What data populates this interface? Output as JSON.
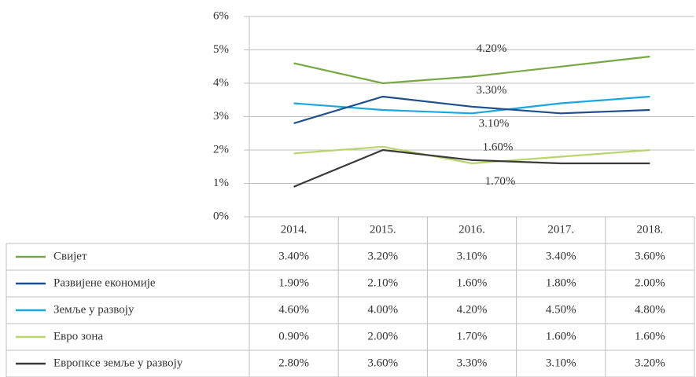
{
  "chart_data": {
    "type": "line",
    "categories": [
      "2014.",
      "2015.",
      "2016.",
      "2017.",
      "2018."
    ],
    "ylim": [
      0,
      6
    ],
    "yticks": [
      {
        "value": 0,
        "label": "0%"
      },
      {
        "value": 1,
        "label": "1%"
      },
      {
        "value": 2,
        "label": "2%"
      },
      {
        "value": 3,
        "label": "3%"
      },
      {
        "value": 4,
        "label": "4%"
      },
      {
        "value": 5,
        "label": "5%"
      },
      {
        "value": 6,
        "label": "6%"
      }
    ],
    "grid": true,
    "series": [
      {
        "name": "Свијет",
        "color": "#77a844",
        "line_color": "#1aa7e0",
        "values": [
          3.4,
          3.2,
          3.1,
          3.4,
          3.6
        ],
        "value_labels": [
          "3.40%",
          "3.20%",
          "3.10%",
          "3.40%",
          "3.60%"
        ]
      },
      {
        "name": "Развијене економије",
        "color": "#1f4e8c",
        "line_color": "#b7d66d",
        "values": [
          1.9,
          2.1,
          1.6,
          1.8,
          2.0
        ],
        "value_labels": [
          "1.90%",
          "2.10%",
          "1.60%",
          "1.80%",
          "2.00%"
        ]
      },
      {
        "name": "Земље у развоју",
        "color": "#1aa7e0",
        "line_color": "#77a844",
        "values": [
          4.6,
          4.0,
          4.2,
          4.5,
          4.8
        ],
        "value_labels": [
          "4.60%",
          "4.00%",
          "4.20%",
          "4.50%",
          "4.80%"
        ]
      },
      {
        "name": "Евро зона",
        "color": "#b7d66d",
        "line_color": "#3a3a3a",
        "values": [
          0.9,
          2.0,
          1.7,
          1.6,
          1.6
        ],
        "value_labels": [
          "0.90%",
          "2.00%",
          "1.70%",
          "1.60%",
          "1.60%"
        ]
      },
      {
        "name": "Европксе земље у развоју",
        "color": "#3a3a3a",
        "line_color": "#1f4e8c",
        "values": [
          2.8,
          3.6,
          3.3,
          3.1,
          3.2
        ],
        "value_labels": [
          "2.80%",
          "3.60%",
          "3.30%",
          "3.10%",
          "3.20%"
        ]
      }
    ]
  }
}
